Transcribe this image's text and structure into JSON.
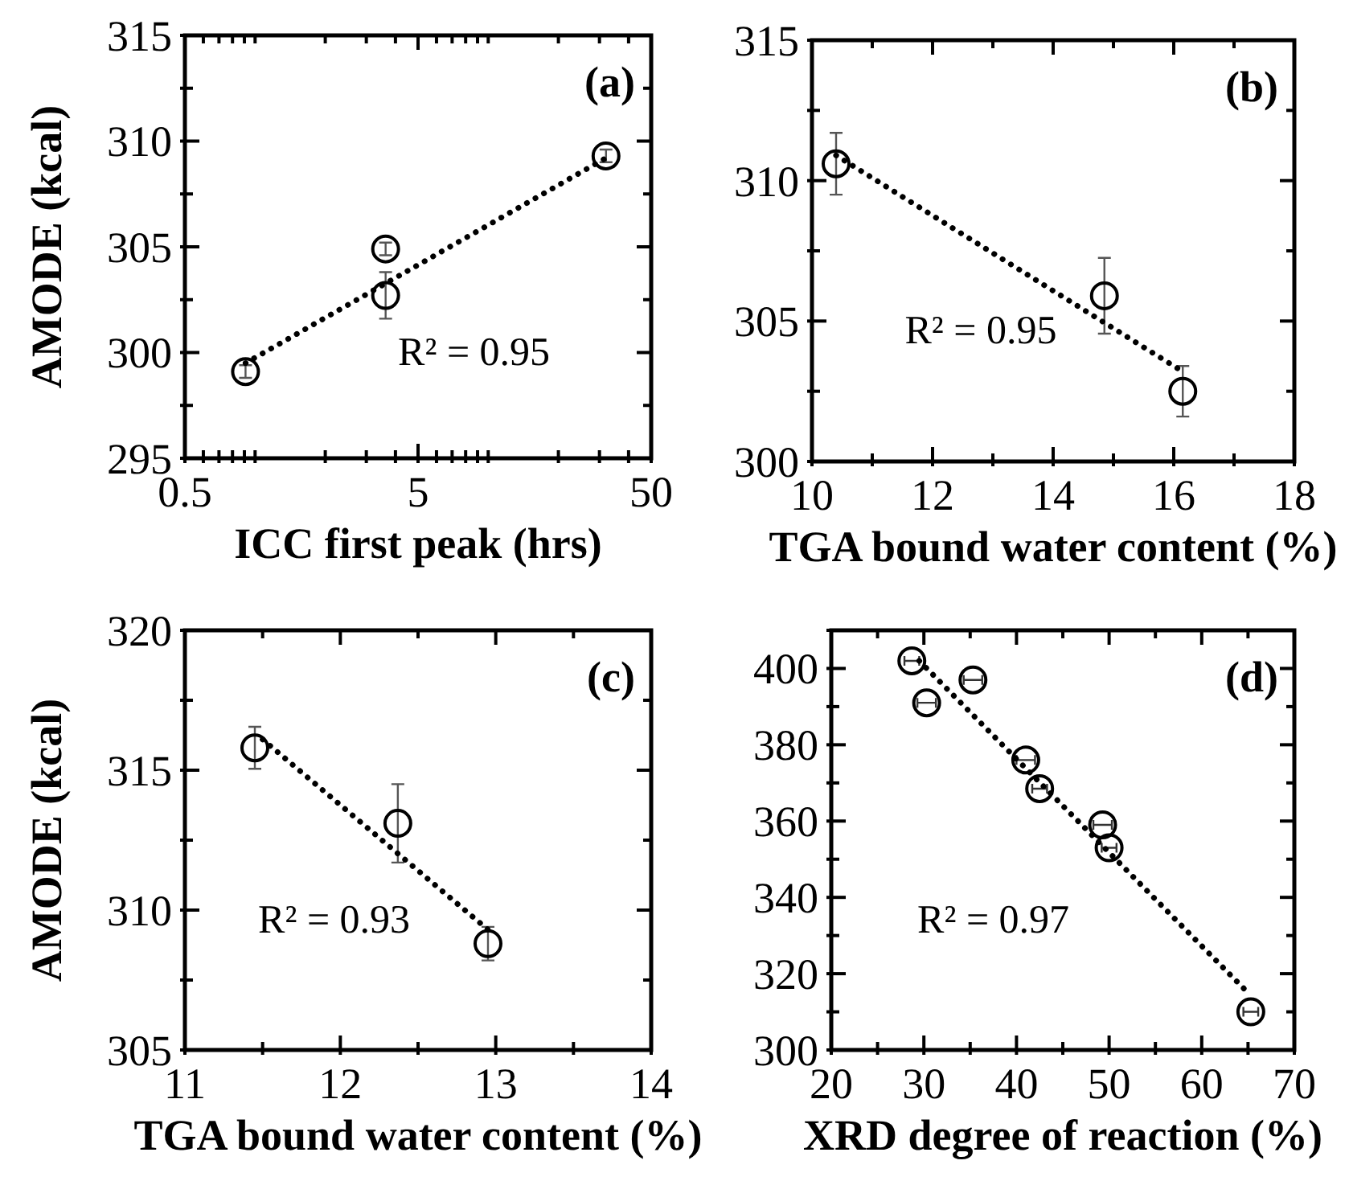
{
  "chart_data": [
    {
      "type": "scatter",
      "xlabel": "ICC first peak (hrs)",
      "ylabel": "AMODE (kcal)",
      "log": "x",
      "xlim": [
        0.5,
        50
      ],
      "ylim": [
        295,
        315
      ],
      "xticks": [
        0.5,
        {
          "value": 0.6,
          "label": null
        },
        {
          "value": 0.7,
          "label": null
        },
        {
          "value": 0.8,
          "label": null
        },
        {
          "value": 0.9,
          "label": null
        },
        {
          "value": 1,
          "label": null
        },
        {
          "value": 2,
          "label": null
        },
        {
          "value": 3,
          "label": null
        },
        {
          "value": 4,
          "label": null
        },
        5,
        {
          "value": 6,
          "label": null
        },
        {
          "value": 7,
          "label": null
        },
        {
          "value": 8,
          "label": null
        },
        {
          "value": 9,
          "label": null
        },
        {
          "value": 10,
          "label": null
        },
        {
          "value": 20,
          "label": null
        },
        {
          "value": 30,
          "label": null
        },
        {
          "value": 40,
          "label": null
        },
        50
      ],
      "yticks": [
        295,
        {
          "value": 297.5,
          "label": null
        },
        300,
        {
          "value": 302.5,
          "label": null
        },
        305,
        {
          "value": 307.5,
          "label": null
        },
        310,
        {
          "value": 312.5,
          "label": null
        },
        315
      ],
      "annotations": [
        "(a)",
        "R² = 0.95"
      ],
      "series": [
        {
          "marker": "circle",
          "color": "#000000",
          "x": [
            0.91,
            3.63,
            3.63,
            32
          ],
          "values": [
            299.1,
            304.9,
            302.7,
            309.3
          ],
          "errors": [
            0.3,
            0.3,
            1.1,
            0.3
          ]
        },
        {
          "type": "line",
          "color": "#000000",
          "line_style": "dotted",
          "x": [
            0.91,
            32
          ],
          "values": [
            299.5,
            309.2
          ]
        }
      ]
    },
    {
      "type": "scatter",
      "xlabel": "TGA bound water content (%)",
      "xlim": [
        10,
        18
      ],
      "ylim": [
        300,
        315
      ],
      "xticks": [
        10,
        {
          "value": 11,
          "label": null
        },
        12,
        {
          "value": 13,
          "label": null
        },
        14,
        {
          "value": 15,
          "label": null
        },
        16,
        {
          "value": 17,
          "label": null
        },
        18
      ],
      "yticks": [
        300,
        {
          "value": 302.5,
          "label": null
        },
        305,
        {
          "value": 307.5,
          "label": null
        },
        310,
        {
          "value": 312.5,
          "label": null
        },
        315
      ],
      "annotations": [
        "(b)",
        "R² = 0.95"
      ],
      "series": [
        {
          "marker": "circle",
          "color": "#000000",
          "x": [
            10.4,
            14.85,
            16.15
          ],
          "values": [
            310.6,
            305.9,
            302.5
          ],
          "errors": [
            1.1,
            1.35,
            0.9
          ]
        },
        {
          "type": "line",
          "color": "#000000",
          "line_style": "dotted",
          "x": [
            10.4,
            16.15
          ],
          "values": [
            310.9,
            303.2
          ]
        }
      ]
    },
    {
      "type": "scatter",
      "xlabel": "TGA bound water content (%)",
      "ylabel": "AMODE (kcal)",
      "xlim": [
        11,
        14
      ],
      "ylim": [
        305,
        320
      ],
      "xticks": [
        11,
        {
          "value": 11.5,
          "label": null
        },
        12,
        {
          "value": 12.5,
          "label": null
        },
        13,
        {
          "value": 13.5,
          "label": null
        },
        14
      ],
      "yticks": [
        305,
        {
          "value": 307.5,
          "label": null
        },
        310,
        {
          "value": 312.5,
          "label": null
        },
        315,
        {
          "value": 317.5,
          "label": null
        },
        320
      ],
      "annotations": [
        "(c)",
        "R² = 0.93"
      ],
      "series": [
        {
          "marker": "circle",
          "color": "#000000",
          "x": [
            11.45,
            12.37,
            12.95
          ],
          "values": [
            315.8,
            313.1,
            308.8
          ],
          "errors": [
            0.75,
            1.4,
            0.6
          ]
        },
        {
          "type": "line",
          "color": "#000000",
          "line_style": "dotted",
          "x": [
            11.5,
            12.95
          ],
          "values": [
            316.1,
            309.3
          ]
        }
      ]
    },
    {
      "type": "scatter",
      "xlabel": "XRD degree of reaction (%)",
      "xlim": [
        20,
        70
      ],
      "ylim": [
        300,
        410
      ],
      "xticks": [
        20,
        {
          "value": 25,
          "label": null
        },
        30,
        {
          "value": 35,
          "label": null
        },
        40,
        {
          "value": 45,
          "label": null
        },
        50,
        {
          "value": 55,
          "label": null
        },
        60,
        {
          "value": 65,
          "label": null
        },
        70
      ],
      "yticks": [
        300,
        {
          "value": 310,
          "label": null
        },
        320,
        {
          "value": 330,
          "label": null
        },
        340,
        {
          "value": 350,
          "label": null
        },
        360,
        {
          "value": 370,
          "label": null
        },
        380,
        {
          "value": 390,
          "label": null
        },
        400,
        {
          "value": 410,
          "label": null
        }
      ],
      "annotations": [
        "(d)",
        "R² = 0.97"
      ],
      "series": [
        {
          "marker": "circle",
          "color": "#000000",
          "x": [
            28.7,
            30.3,
            35.3,
            41.0,
            42.5,
            49.3,
            50.0,
            65.3
          ],
          "values": [
            402,
            391,
            397,
            376,
            368.5,
            359,
            353,
            310
          ],
          "xerrors": [
            0.8,
            1,
            1,
            1,
            0.8,
            1,
            0.8,
            0.8
          ]
        },
        {
          "type": "line",
          "color": "#000000",
          "line_style": "dotted",
          "x": [
            29.5,
            65
          ],
          "values": [
            402,
            315
          ]
        }
      ]
    }
  ]
}
